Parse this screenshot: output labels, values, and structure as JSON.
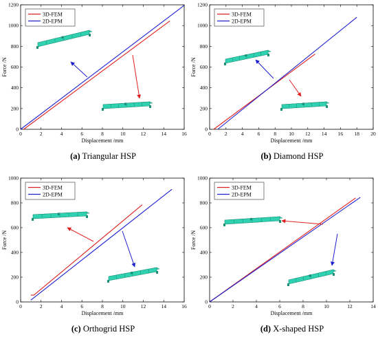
{
  "figure": {
    "colors": {
      "fem": "#e02020",
      "epm": "#1f1fd0",
      "model": "#2fd1b0",
      "model_dark": "#1b8f78"
    }
  },
  "chart_data": [
    {
      "type": "line",
      "caption_letter": "(a)",
      "caption_text": " Triangular HSP",
      "xlabel": "Displacement /mm",
      "ylabel": "Force /N",
      "xlim": [
        0,
        16
      ],
      "ylim": [
        0,
        1200
      ],
      "xticks": [
        0,
        2,
        4,
        6,
        8,
        10,
        12,
        14,
        16
      ],
      "yticks": [
        0,
        200,
        400,
        600,
        800,
        1000,
        1200
      ],
      "legend": {
        "position": "top-left",
        "entries": [
          "3D-FEM",
          "2D-EPM"
        ]
      },
      "series": [
        {
          "name": "3D-FEM",
          "color": "#e02020",
          "x": [
            0.3,
            14.6
          ],
          "y": [
            0,
            1045
          ]
        },
        {
          "name": "2D-EPM",
          "color": "#1f1fd0",
          "x": [
            0,
            16
          ],
          "y": [
            0,
            1195
          ]
        }
      ]
    },
    {
      "type": "line",
      "caption_letter": "(b)",
      "caption_text": " Diamond HSP",
      "xlabel": "Displacement /mm",
      "ylabel": "Force /N",
      "xlim": [
        0,
        20
      ],
      "ylim": [
        0,
        1200
      ],
      "xticks": [
        0,
        2,
        4,
        6,
        8,
        10,
        12,
        14,
        16,
        18,
        20
      ],
      "yticks": [
        0,
        200,
        400,
        600,
        800,
        1000,
        1200
      ],
      "legend": {
        "position": "top-left",
        "entries": [
          "3D-FEM",
          "2D-EPM"
        ]
      },
      "series": [
        {
          "name": "3D-FEM",
          "color": "#e02020",
          "x": [
            0.5,
            12.9
          ],
          "y": [
            0,
            725
          ]
        },
        {
          "name": "2D-EPM",
          "color": "#1f1fd0",
          "x": [
            1.0,
            18.0
          ],
          "y": [
            0,
            1080
          ]
        }
      ]
    },
    {
      "type": "line",
      "caption_letter": "(c)",
      "caption_text": " Orthogrid HSP",
      "xlabel": "Displacement /mm",
      "ylabel": "Force /N",
      "xlim": [
        0,
        16
      ],
      "ylim": [
        0,
        1000
      ],
      "xticks": [
        0,
        2,
        4,
        6,
        8,
        10,
        12,
        14,
        16
      ],
      "yticks": [
        0,
        200,
        400,
        600,
        800,
        1000
      ],
      "legend": {
        "position": "top-left",
        "entries": [
          "3D-FEM",
          "2D-EPM"
        ]
      },
      "series": [
        {
          "name": "3D-FEM",
          "color": "#e02020",
          "x": [
            1.0,
            1.3,
            11.9
          ],
          "y": [
            55,
            55,
            785
          ]
        },
        {
          "name": "2D-EPM",
          "color": "#1f1fd0",
          "x": [
            1.0,
            14.8
          ],
          "y": [
            15,
            910
          ]
        }
      ]
    },
    {
      "type": "line",
      "caption_letter": "(d)",
      "caption_text": " X-shaped HSP",
      "xlabel": "Displacement /mm",
      "ylabel": "Force /N",
      "xlim": [
        0,
        14
      ],
      "ylim": [
        0,
        1000
      ],
      "xticks": [
        0,
        2,
        4,
        6,
        8,
        10,
        12,
        14
      ],
      "yticks": [
        0,
        200,
        400,
        600,
        800,
        1000
      ],
      "legend": {
        "position": "top-left",
        "entries": [
          "3D-FEM",
          "2D-EPM"
        ]
      },
      "series": [
        {
          "name": "3D-FEM",
          "color": "#e02020",
          "x": [
            0,
            12.5
          ],
          "y": [
            0,
            840
          ]
        },
        {
          "name": "2D-EPM",
          "color": "#1f1fd0",
          "x": [
            0,
            12.9
          ],
          "y": [
            0,
            845
          ]
        }
      ]
    }
  ]
}
